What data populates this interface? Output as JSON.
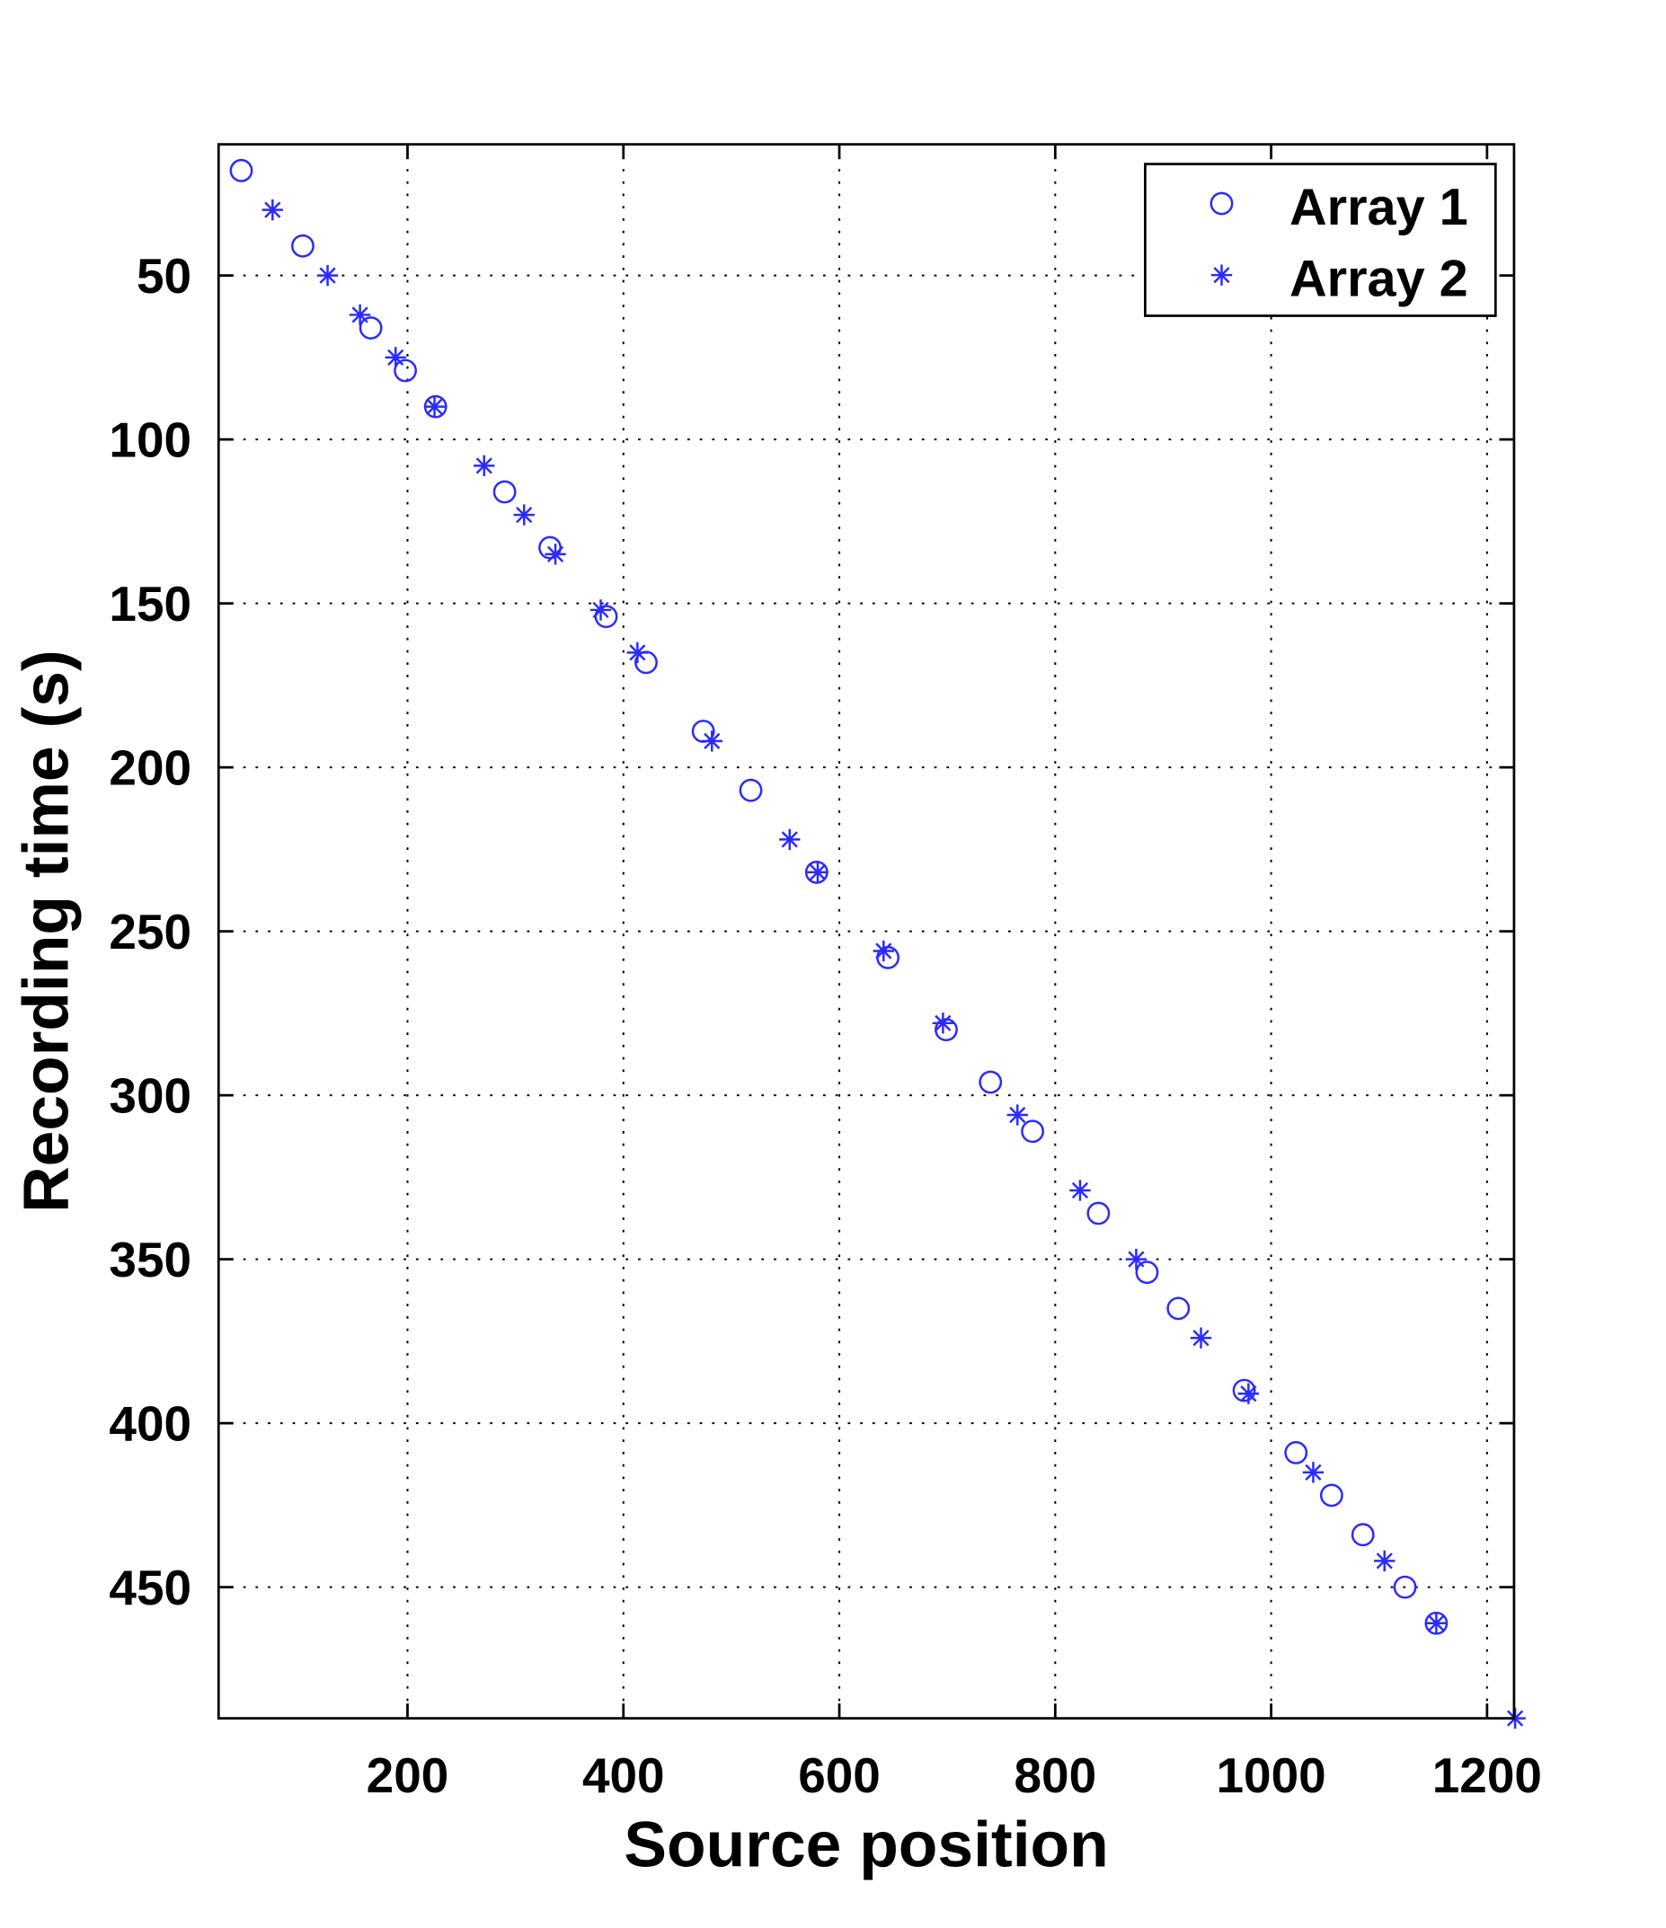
{
  "chart_data": {
    "type": "scatter",
    "xlabel": "Source position",
    "ylabel": "Recording time (s)",
    "xlim": [
      25,
      1225
    ],
    "ylim": [
      10,
      490
    ],
    "y_reversed": true,
    "grid": true,
    "legend_position": "top-right",
    "xticks": [
      200,
      400,
      600,
      800,
      1000,
      1200
    ],
    "yticks": [
      50,
      100,
      150,
      200,
      250,
      300,
      350,
      400,
      450
    ],
    "color": "#2a2aff",
    "series": [
      {
        "name": "Array 1",
        "marker": "circle",
        "x": [
          46,
          103,
          166,
          198,
          226,
          290,
          332,
          384,
          421,
          474,
          518,
          579,
          645,
          699,
          740,
          779,
          840,
          885,
          914,
          975,
          1023,
          1056,
          1085,
          1124,
          1153
        ],
        "y": [
          18,
          41,
          66,
          79,
          90,
          116,
          133,
          154,
          168,
          189,
          207,
          232,
          258,
          280,
          296,
          311,
          336,
          354,
          365,
          390,
          409,
          422,
          434,
          450,
          461
        ]
      },
      {
        "name": "Array 2",
        "marker": "star",
        "x": [
          75,
          126,
          156,
          189,
          225,
          271,
          308,
          337,
          379,
          413,
          482,
          554,
          580,
          641,
          696,
          765,
          823,
          875,
          935,
          979,
          1039,
          1105,
          1153,
          1226
        ],
        "y": [
          30,
          50,
          62,
          75,
          90,
          108,
          123,
          135,
          152,
          165,
          192,
          222,
          232,
          256,
          278,
          306,
          329,
          350,
          374,
          391,
          415,
          442,
          461,
          490
        ]
      }
    ]
  }
}
